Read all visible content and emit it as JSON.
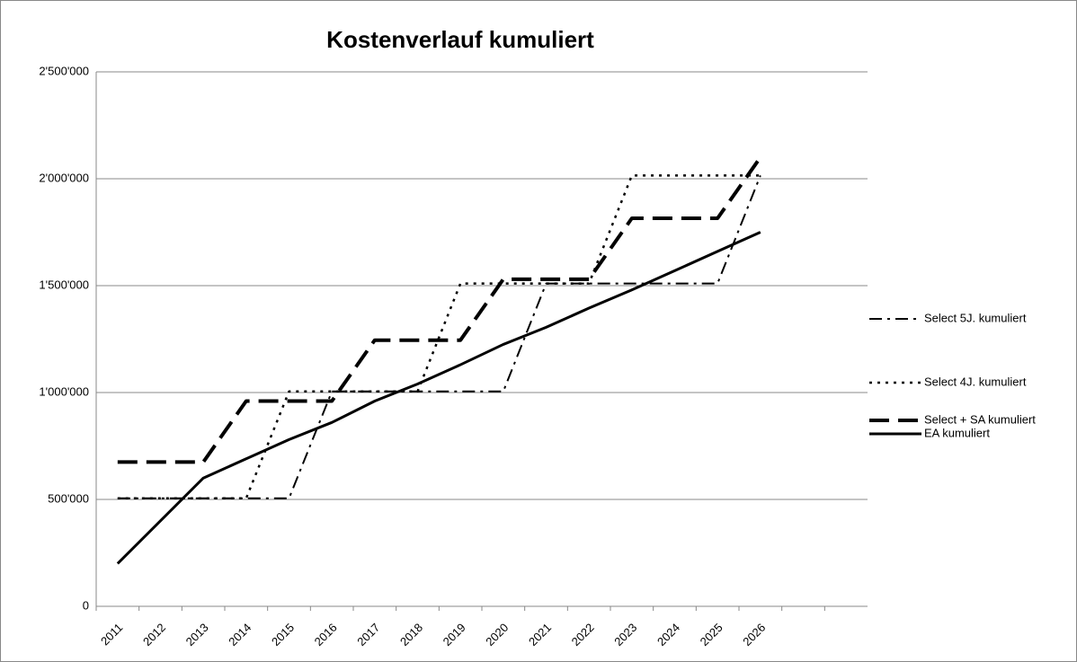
{
  "chart_data": {
    "type": "line",
    "title": "Kostenverlauf kumuliert",
    "categories": [
      "2011",
      "2012",
      "2013",
      "2014",
      "2015",
      "2016",
      "2017",
      "2018",
      "2019",
      "2020",
      "2021",
      "2022",
      "2023",
      "2024",
      "2025",
      "2026",
      null,
      null
    ],
    "ylim": [
      0,
      2500000
    ],
    "yticks": [
      0,
      {
        "value": 500000,
        "label": "500'000"
      },
      {
        "value": 1000000,
        "label": "1'000'000"
      },
      {
        "value": 1500000,
        "label": "1'500'000"
      },
      {
        "value": 2000000,
        "label": "2'000'000"
      },
      {
        "value": 2500000,
        "label": "2'500'000"
      }
    ],
    "grid": true,
    "legend": "right",
    "series": [
      {
        "name": "Select 5J. kumuliert",
        "color": "#000000",
        "dash": "dashdot",
        "values": [
          505000,
          505000,
          505000,
          505000,
          505000,
          1005000,
          1005000,
          1005000,
          1005000,
          1005000,
          1510000,
          1510000,
          1510000,
          1510000,
          1510000,
          2015000,
          null,
          null
        ]
      },
      {
        "name": "Select 4J. kumuliert",
        "color": "#000000",
        "dash": "dotted",
        "values": [
          505000,
          505000,
          505000,
          505000,
          1005000,
          1005000,
          1005000,
          1005000,
          1510000,
          1510000,
          1510000,
          1510000,
          2015000,
          2015000,
          2015000,
          2015000,
          null,
          null
        ]
      },
      {
        "name": "Select + SA kumuliert",
        "color": "#000000",
        "dash": "longdash",
        "values": [
          675000,
          675000,
          675000,
          960000,
          960000,
          960000,
          1245000,
          1245000,
          1245000,
          1530000,
          1530000,
          1530000,
          1815000,
          1815000,
          1815000,
          2100000,
          null,
          null
        ]
      },
      {
        "name": "EA kumuliert",
        "color": "#000000",
        "dash": "solid",
        "values": [
          200000,
          400000,
          600000,
          690000,
          780000,
          860000,
          960000,
          1040000,
          1130000,
          1225000,
          1305000,
          1395000,
          1480000,
          1570000,
          1660000,
          1750000,
          null,
          null
        ]
      }
    ]
  }
}
